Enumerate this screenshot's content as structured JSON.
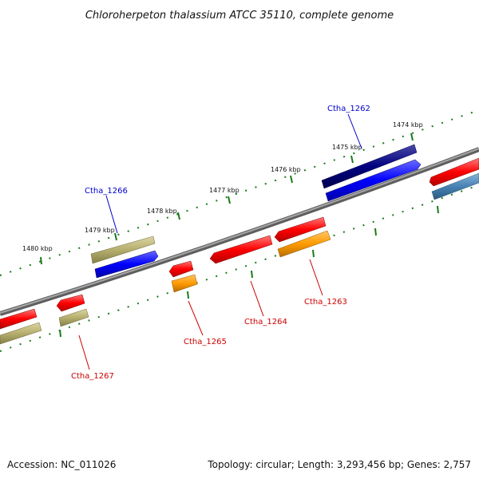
{
  "title": "Chloroherpeton thalassium ATCC 35110, complete genome",
  "footer": {
    "accession": "Accession: NC_011026",
    "summary": "Topology: circular; Length: 3,293,456 bp; Genes: 2,757"
  },
  "scale_labels": [
    "1474 kbp",
    "1475 kbp",
    "1476 kbp",
    "1477 kbp",
    "1478 kbp",
    "1479 kbp",
    "1480 kbp"
  ],
  "gene_labels": [
    {
      "name": "Ctha_1262",
      "color": "#0000cc"
    },
    {
      "name": "Ctha_1263",
      "color": "#cc0000"
    },
    {
      "name": "Ctha_1264",
      "color": "#cc0000"
    },
    {
      "name": "Ctha_1265",
      "color": "#cc0000"
    },
    {
      "name": "Ctha_1266",
      "color": "#0000cc"
    },
    {
      "name": "Ctha_1267",
      "color": "#cc0000"
    }
  ],
  "colors": {
    "backbone": "#808080",
    "tick": "#1a7a1a",
    "red": "#ff0000",
    "blue": "#0000ff",
    "navy": "#000080",
    "olive": "#b5ae6e",
    "orange": "#ff9a00",
    "steel": "#4682b4"
  }
}
